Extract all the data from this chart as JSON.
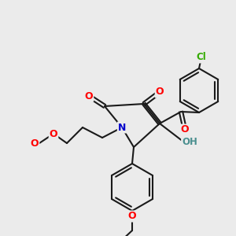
{
  "bg_color": "#ebebeb",
  "bond_color": "#1a1a1a",
  "bond_width": 1.5,
  "atom_colors": {
    "O": "#ff0000",
    "N": "#0000cc",
    "Cl": "#33aa00",
    "OH": "#4a8f8f",
    "C": "#1a1a1a"
  },
  "font_size": 9,
  "fig_size": [
    3.0,
    3.0
  ],
  "dpi": 100
}
